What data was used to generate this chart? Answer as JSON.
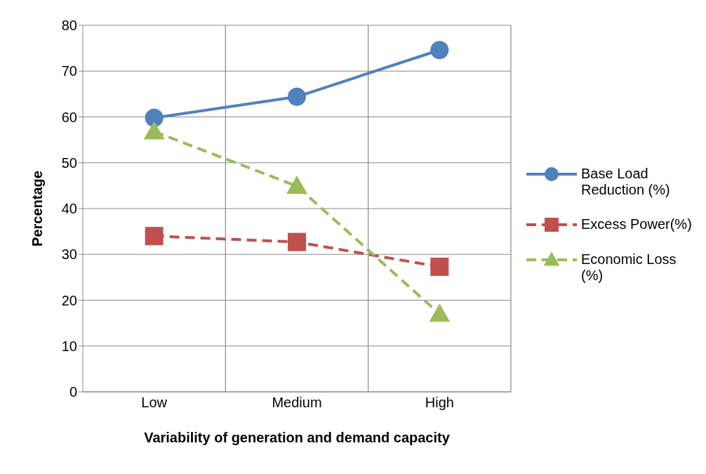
{
  "chart_data": {
    "type": "line",
    "xlabel": "Variability of generation and demand capacity",
    "ylabel": "Percentage",
    "categories": [
      "Low",
      "Medium",
      "High"
    ],
    "series": [
      {
        "name": "Base Load Reduction (%)",
        "color": "#4f81bd",
        "values": [
          59.8,
          64.4,
          74.6
        ],
        "marker": "circle",
        "line_style": "solid"
      },
      {
        "name": "Excess Power(%)",
        "color": "#c0504d",
        "values": [
          34.0,
          32.7,
          27.3
        ],
        "marker": "square",
        "line_style": "dashed"
      },
      {
        "name": "Economic Loss (%)",
        "color": "#9bbb59",
        "values": [
          56.8,
          44.9,
          17.0
        ],
        "marker": "triangle",
        "line_style": "dashed"
      }
    ],
    "ylim": [
      0,
      80
    ],
    "yticks": [
      0,
      10,
      20,
      30,
      40,
      50,
      60,
      70,
      80
    ],
    "grid": true,
    "legend": "right"
  }
}
